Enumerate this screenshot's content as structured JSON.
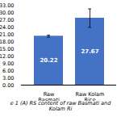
{
  "chart_data": {
    "type": "bar",
    "categories": [
      "Raw Basmati Rice",
      "Raw Kolam Rice"
    ],
    "values": [
      20.22,
      27.67
    ],
    "errors": [
      0.4,
      3.8
    ],
    "color": "#4472C4",
    "ylim": [
      0,
      33
    ],
    "yticks": [
      {
        "value": 0.0,
        "label": "0.00"
      },
      {
        "value": 3.0,
        "label": "3.00"
      },
      {
        "value": 6.0,
        "label": "6.00"
      },
      {
        "value": 9.0,
        "label": "9.00"
      },
      {
        "value": 12.0,
        "label": "12.00"
      },
      {
        "value": 15.0,
        "label": "15.00"
      },
      {
        "value": 18.0,
        "label": "18.00"
      },
      {
        "value": 21.0,
        "label": "21.00"
      },
      {
        "value": 24.0,
        "label": "24.00"
      },
      {
        "value": 27.0,
        "label": "27.00"
      },
      {
        "value": 30.0,
        "label": "30.00"
      },
      {
        "value": 33.0,
        "label": "33.00"
      }
    ],
    "data_labels": true,
    "grid": false,
    "caption": "e 1 (A) RS content of raw Basmati and Kolam Ri"
  }
}
